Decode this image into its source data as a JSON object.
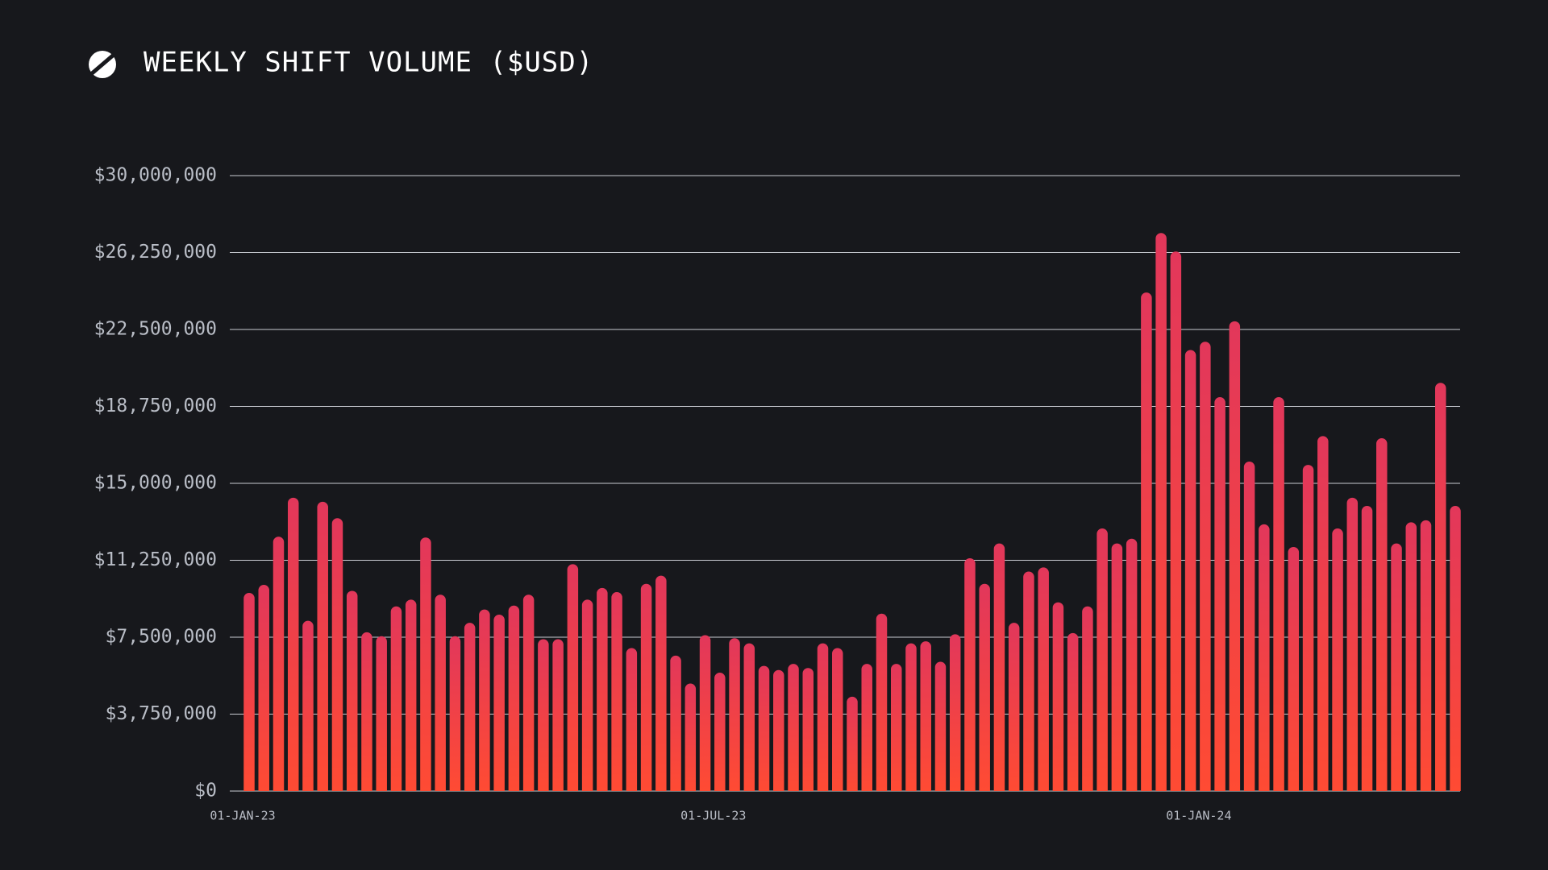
{
  "chart_data": {
    "type": "bar",
    "title": "WEEKLY SHIFT VOLUME ($USD)",
    "categories": [
      "01-JAN-23",
      null,
      null,
      null,
      null,
      null,
      null,
      null,
      null,
      null,
      null,
      null,
      null,
      null,
      null,
      null,
      null,
      null,
      null,
      null,
      null,
      null,
      null,
      null,
      null,
      null,
      null,
      null,
      null,
      null,
      null,
      null,
      "01-JUL-23",
      null,
      null,
      null,
      null,
      null,
      null,
      null,
      null,
      null,
      null,
      null,
      null,
      null,
      null,
      null,
      null,
      null,
      null,
      null,
      null,
      null,
      null,
      null,
      null,
      null,
      null,
      null,
      null,
      null,
      null,
      null,
      null,
      "01-JAN-24",
      null,
      null,
      null,
      null,
      null,
      null,
      null,
      null,
      null,
      null,
      null,
      null,
      null,
      null,
      null,
      null,
      null
    ],
    "values": [
      9660000,
      10050000,
      12400000,
      14300000,
      8300000,
      14100000,
      13300000,
      9760000,
      7740000,
      7550000,
      9000000,
      9330000,
      12360000,
      9570000,
      7550000,
      8200000,
      8850000,
      8600000,
      9040000,
      9570000,
      7400000,
      7400000,
      11060000,
      9330000,
      9900000,
      9700000,
      6970000,
      10100000,
      10500000,
      6600000,
      5240000,
      7600000,
      5770000,
      7450000,
      7200000,
      6100000,
      5900000,
      6200000,
      6000000,
      7200000,
      6970000,
      4600000,
      6200000,
      8650000,
      6200000,
      7200000,
      7300000,
      6300000,
      7640000,
      11350000,
      10100000,
      12070000,
      8200000,
      10700000,
      10900000,
      9200000,
      7700000,
      9000000,
      12800000,
      12070000,
      12300000,
      24300000,
      27200000,
      26300000,
      21500000,
      21900000,
      19200000,
      22900000,
      16060000,
      13000000,
      19200000,
      11900000,
      15900000,
      17300000,
      12800000,
      14300000,
      13900000,
      17200000,
      12070000,
      13100000,
      13200000,
      19900000,
      13900000
    ],
    "gradient": [
      "#e2375b",
      "#ff4b33"
    ],
    "ylim": [
      0,
      30000000
    ],
    "yticks": [
      {
        "value": 0,
        "label": "$0"
      },
      {
        "value": 3750000,
        "label": "$3,750,000"
      },
      {
        "value": 7500000,
        "label": "$7,500,000"
      },
      {
        "value": 11250000,
        "label": "$11,250,000"
      },
      {
        "value": 15000000,
        "label": "$15,000,000"
      },
      {
        "value": 18750000,
        "label": "$18,750,000"
      },
      {
        "value": 22500000,
        "label": "$22,500,000"
      },
      {
        "value": 26250000,
        "label": "$26,250,000"
      },
      {
        "value": 30000000,
        "label": "$30,000,000"
      }
    ],
    "grid": true
  }
}
